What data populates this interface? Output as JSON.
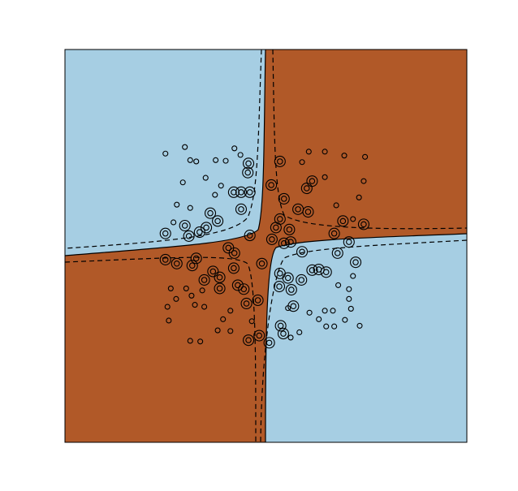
{
  "chart_data": {
    "type": "scatter",
    "xlim": [
      -3,
      3
    ],
    "ylim": [
      -3,
      3
    ],
    "series": [
      {
        "marker": "circle",
        "color": "#000000",
        "x": [
          -1.5,
          -1.21,
          -1.13,
          -1.04,
          -0.75,
          -0.6,
          -0.47,
          -0.38,
          -1.24,
          -0.9,
          -0.76,
          -0.67,
          -1.13,
          -1.38,
          -1.33,
          0.64,
          0.88,
          1.17,
          1.48,
          0.54,
          0.88,
          1.46,
          1.39,
          1.05,
          1.3,
          -1.42,
          -1.47,
          -1.34,
          -1.19,
          -1.11,
          -0.95,
          -1.06,
          -0.92,
          -1.45,
          -0.64,
          -0.53,
          -0.72,
          -1.13,
          -0.98,
          -0.53,
          -0.21,
          0.33,
          0.65,
          0.79,
          0.88,
          1.0,
          1.08,
          1.24,
          1.24,
          1.27,
          1.18,
          1.4,
          0.9,
          1.02,
          0.5,
          0.37,
          1.3
        ],
        "values": [
          1.41,
          1.51,
          1.31,
          1.29,
          1.31,
          1.3,
          1.49,
          1.39,
          0.97,
          1.04,
          0.78,
          0.92,
          0.58,
          0.36,
          0.63,
          1.44,
          1.44,
          1.38,
          1.36,
          1.28,
          1.05,
          0.99,
          0.74,
          0.62,
          0.41,
          -0.65,
          -0.93,
          -0.81,
          -0.65,
          -0.76,
          -0.68,
          -0.9,
          -0.93,
          -1.14,
          -1.12,
          -0.99,
          -1.29,
          -1.45,
          -1.46,
          -1.3,
          -1.15,
          -0.95,
          -1.02,
          -1.12,
          -0.99,
          -0.99,
          -0.6,
          -0.66,
          -0.81,
          -0.96,
          -1.13,
          -1.22,
          -1.23,
          -1.23,
          -1.32,
          -1.4,
          -0.46
        ]
      },
      {
        "marker": "ring",
        "color": "#000000",
        "x": [
          -0.26,
          -0.27,
          -0.37,
          -0.48,
          -0.24,
          -0.83,
          -1.21,
          -1.15,
          -1.5,
          -0.99,
          -0.89,
          -0.72,
          -0.37,
          -0.24,
          -0.56,
          0.21,
          0.08,
          0.27,
          0.61,
          0.69,
          0.48,
          0.63,
          0.21,
          0.15,
          0.35,
          1.15,
          1.46,
          1.02,
          1.24,
          0.37,
          0.27,
          0.54,
          0.09,
          -1.5,
          -1.33,
          -1.1,
          -1.04,
          -0.47,
          -0.48,
          -0.79,
          -0.69,
          -0.92,
          -0.69,
          -0.42,
          -0.33,
          -0.29,
          -0.12,
          -0.26,
          0.05,
          -0.1,
          -0.06,
          0.21,
          0.33,
          0.2,
          0.38,
          0.53,
          0.69,
          0.79,
          0.9,
          1.07,
          1.34,
          0.41,
          0.22,
          0.26
        ],
        "values": [
          1.26,
          1.12,
          0.82,
          0.82,
          0.82,
          0.5,
          0.31,
          0.15,
          0.19,
          0.21,
          0.28,
          0.38,
          0.56,
          0.16,
          -0.03,
          1.29,
          0.93,
          0.72,
          0.88,
          0.99,
          0.56,
          0.52,
          0.41,
          0.28,
          0.25,
          0.38,
          0.33,
          0.19,
          0.06,
          0.06,
          0.04,
          -0.09,
          0.1,
          -0.21,
          -0.27,
          -0.3,
          -0.19,
          -0.11,
          -0.34,
          -0.39,
          -0.48,
          -0.52,
          -0.65,
          -0.6,
          -0.66,
          -0.88,
          -0.83,
          -1.44,
          -1.48,
          -1.37,
          -0.27,
          -0.42,
          -0.49,
          -0.62,
          -0.67,
          -0.52,
          -0.37,
          -0.36,
          -0.4,
          -0.11,
          -0.25,
          -0.92,
          -1.22,
          -1.34
        ]
      }
    ]
  }
}
